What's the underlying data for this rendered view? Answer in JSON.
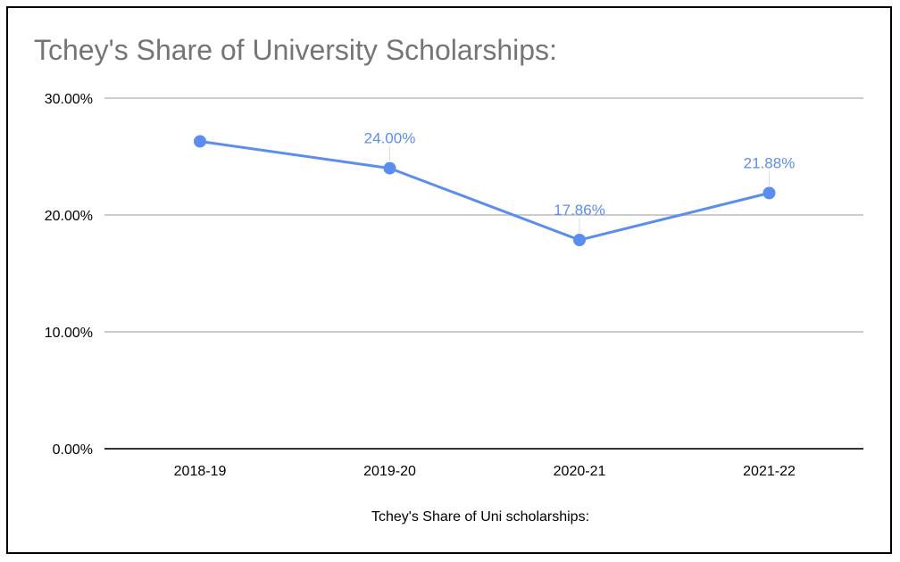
{
  "chart_data": {
    "type": "line",
    "title": "Tchey's Share of University Scholarships:",
    "xlabel": "Tchey's Share of Uni scholarships:",
    "ylabel": "",
    "categories": [
      "2018-19",
      "2019-20",
      "2020-21",
      "2021-22"
    ],
    "series": [
      {
        "values": [
          26.3,
          24.0,
          17.86,
          21.88
        ],
        "data_labels": [
          "",
          "24.00%",
          "17.86%",
          "21.88%"
        ],
        "color": "#5b8def"
      }
    ],
    "ylim": [
      0,
      30
    ],
    "yticks": [
      0,
      10,
      20,
      30
    ],
    "ytick_labels": [
      "0.00%",
      "10.00%",
      "20.00%",
      "30.00%"
    ],
    "grid": true,
    "legend": "none",
    "colors": {
      "title": "#757575",
      "gridline": "#cccccc",
      "axis": "#333333",
      "data_label": "#5b8def"
    }
  }
}
